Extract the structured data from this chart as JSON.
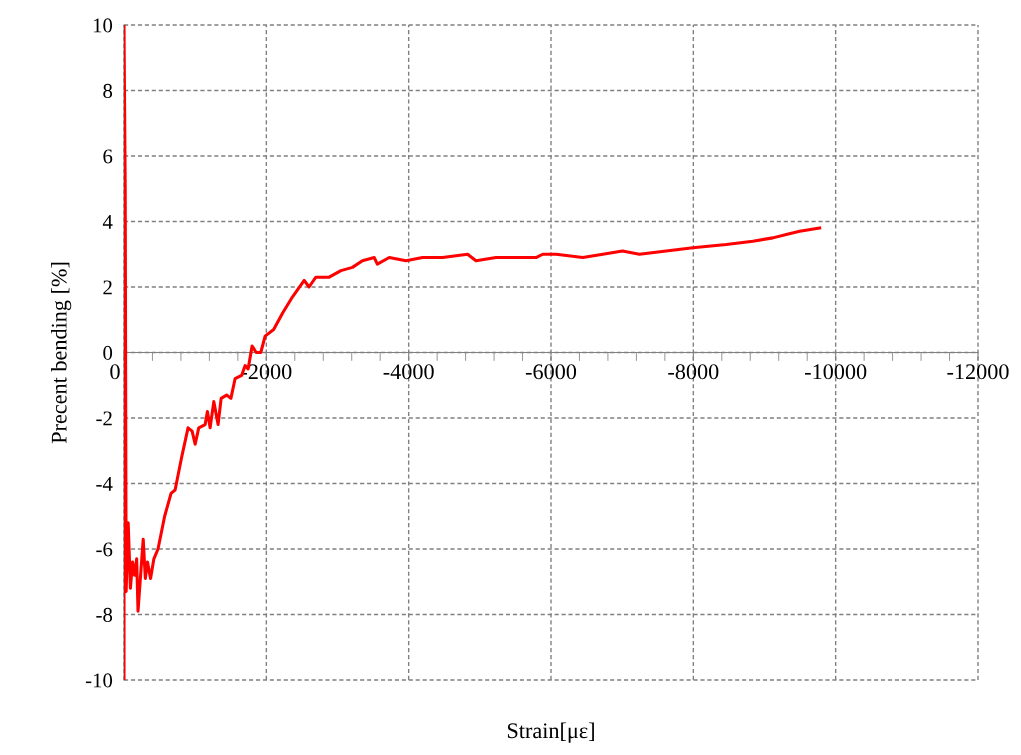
{
  "chart_data": {
    "type": "line",
    "xlabel": "Strain[με]",
    "ylabel": "Precent bending [%]",
    "xlim": [
      0,
      -12000
    ],
    "ylim": [
      -10,
      10
    ],
    "xticks": [
      0,
      {
        "value": -400,
        "label": null
      },
      {
        "value": -800,
        "label": null
      },
      {
        "value": -1200,
        "label": null
      },
      {
        "value": -1600,
        "label": null
      },
      -2000,
      {
        "value": -2400,
        "label": null
      },
      {
        "value": -2800,
        "label": null
      },
      {
        "value": -3200,
        "label": null
      },
      {
        "value": -3600,
        "label": null
      },
      -4000,
      {
        "value": -4400,
        "label": null
      },
      {
        "value": -4800,
        "label": null
      },
      {
        "value": -5200,
        "label": null
      },
      {
        "value": -5600,
        "label": null
      },
      -6000,
      {
        "value": -6400,
        "label": null
      },
      {
        "value": -6800,
        "label": null
      },
      {
        "value": -7200,
        "label": null
      },
      {
        "value": -7600,
        "label": null
      },
      -8000,
      {
        "value": -8400,
        "label": null
      },
      {
        "value": -8800,
        "label": null
      },
      {
        "value": -9200,
        "label": null
      },
      {
        "value": -9600,
        "label": null
      },
      -10000,
      {
        "value": -10400,
        "label": null
      },
      {
        "value": -10800,
        "label": null
      },
      {
        "value": -11200,
        "label": null
      },
      {
        "value": -11600,
        "label": null
      },
      -12000
    ],
    "yticks": [
      -10,
      -8,
      -6,
      -4,
      -2,
      0,
      2,
      4,
      6,
      8,
      10
    ],
    "grid": true,
    "marker": "none",
    "line_style": "solid",
    "series": [
      {
        "color": "#ff0000",
        "x": [
          0,
          0,
          -17,
          -30,
          -59,
          -90,
          -120,
          -149,
          -178,
          -197,
          -270,
          -300,
          -330,
          -373,
          -420,
          -478,
          -571,
          -661,
          -718,
          -810,
          -900,
          -957,
          -1000,
          -1050,
          -1140,
          -1172,
          -1210,
          -1262,
          -1322,
          -1365,
          -1442,
          -1502,
          -1561,
          -1653,
          -1702,
          -1744,
          -1800,
          -1857,
          -1922,
          -1983,
          -2103,
          -2227,
          -2368,
          -2532,
          -2600,
          -2696,
          -2883,
          -3048,
          -3210,
          -3350,
          -3516,
          -3560,
          -3727,
          -3962,
          -4195,
          -4477,
          -4828,
          -4946,
          -5228,
          -5509,
          -5790,
          -5884,
          -6072,
          -6447,
          -6728,
          -7004,
          -7243,
          -7618,
          -7993,
          -8462,
          -8837,
          -9118,
          -9306,
          -9494,
          -9775
        ],
        "values": [
          -10,
          10,
          5.0,
          -7.3,
          -5.2,
          -7.2,
          -6.4,
          -6.8,
          -6.3,
          -7.9,
          -5.7,
          -6.9,
          -6.4,
          -6.9,
          -6.3,
          -6.0,
          -5.0,
          -4.3,
          -4.2,
          -3.2,
          -2.3,
          -2.4,
          -2.8,
          -2.3,
          -2.2,
          -1.8,
          -2.3,
          -1.5,
          -2.2,
          -1.4,
          -1.3,
          -1.4,
          -0.8,
          -0.7,
          -0.4,
          -0.5,
          0.2,
          0.0,
          0.0,
          0.5,
          0.7,
          1.2,
          1.7,
          2.2,
          2.0,
          2.3,
          2.3,
          2.5,
          2.6,
          2.8,
          2.9,
          2.7,
          2.9,
          2.8,
          2.9,
          2.9,
          3.0,
          2.8,
          2.9,
          2.9,
          2.9,
          3.0,
          3.0,
          2.9,
          3.0,
          3.1,
          3.0,
          3.1,
          3.2,
          3.3,
          3.4,
          3.5,
          3.6,
          3.7,
          3.8
        ]
      }
    ]
  }
}
